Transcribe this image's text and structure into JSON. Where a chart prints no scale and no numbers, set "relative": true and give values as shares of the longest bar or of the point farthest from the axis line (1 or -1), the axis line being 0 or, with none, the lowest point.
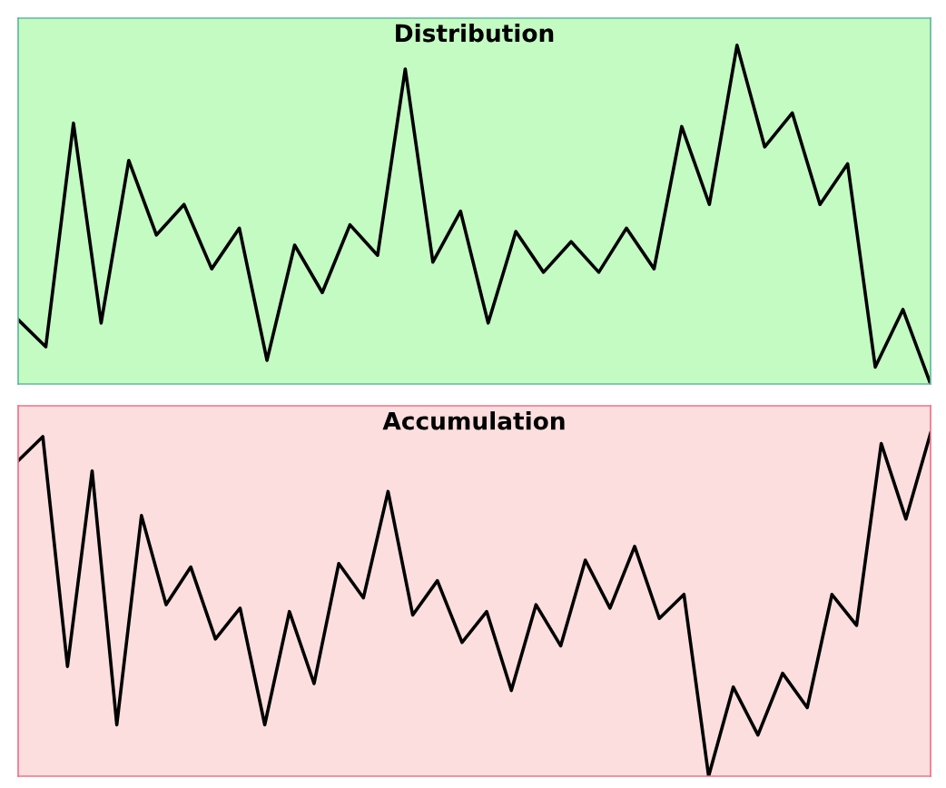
{
  "chart_data": [
    {
      "type": "line",
      "title": "Distribution",
      "relative": true,
      "tick_labels": false,
      "categories": [
        null,
        null,
        null,
        null,
        null,
        null,
        null,
        null,
        null,
        null,
        null,
        null,
        null,
        null,
        null,
        null,
        null,
        null,
        null,
        null,
        null,
        null,
        null,
        null,
        null,
        null,
        null,
        null,
        null,
        null,
        null,
        null,
        null,
        null
      ],
      "series": [
        {
          "color": "#000000",
          "values": [
            0.19,
            0.11,
            0.77,
            0.18,
            0.66,
            0.44,
            0.53,
            0.34,
            0.46,
            0.07,
            0.41,
            0.27,
            0.47,
            0.38,
            0.93,
            0.36,
            0.51,
            0.18,
            0.45,
            0.33,
            0.42,
            0.33,
            0.46,
            0.34,
            0.76,
            0.53,
            1,
            0.7,
            0.8,
            0.53,
            0.65,
            0.05,
            0.22,
            0
          ]
        }
      ]
    },
    {
      "type": "line",
      "title": "Accumulation",
      "relative": true,
      "tick_labels": false,
      "categories": [
        null,
        null,
        null,
        null,
        null,
        null,
        null,
        null,
        null,
        null,
        null,
        null,
        null,
        null,
        null,
        null,
        null,
        null,
        null,
        null,
        null,
        null,
        null,
        null,
        null,
        null,
        null,
        null,
        null,
        null,
        null,
        null,
        null,
        null,
        null,
        null,
        null,
        null
      ],
      "series": [
        {
          "color": "#000000",
          "values": [
            0.92,
            0.99,
            0.32,
            0.89,
            0.15,
            0.76,
            0.5,
            0.61,
            0.4,
            0.49,
            0.15,
            0.48,
            0.27,
            0.62,
            0.52,
            0.83,
            0.47,
            0.57,
            0.39,
            0.48,
            0.25,
            0.5,
            0.38,
            0.63,
            0.49,
            0.67,
            0.46,
            0.53,
            0,
            0.26,
            0.12,
            0.3,
            0.2,
            0.53,
            0.44,
            0.97,
            0.75,
            1
          ]
        }
      ]
    }
  ]
}
